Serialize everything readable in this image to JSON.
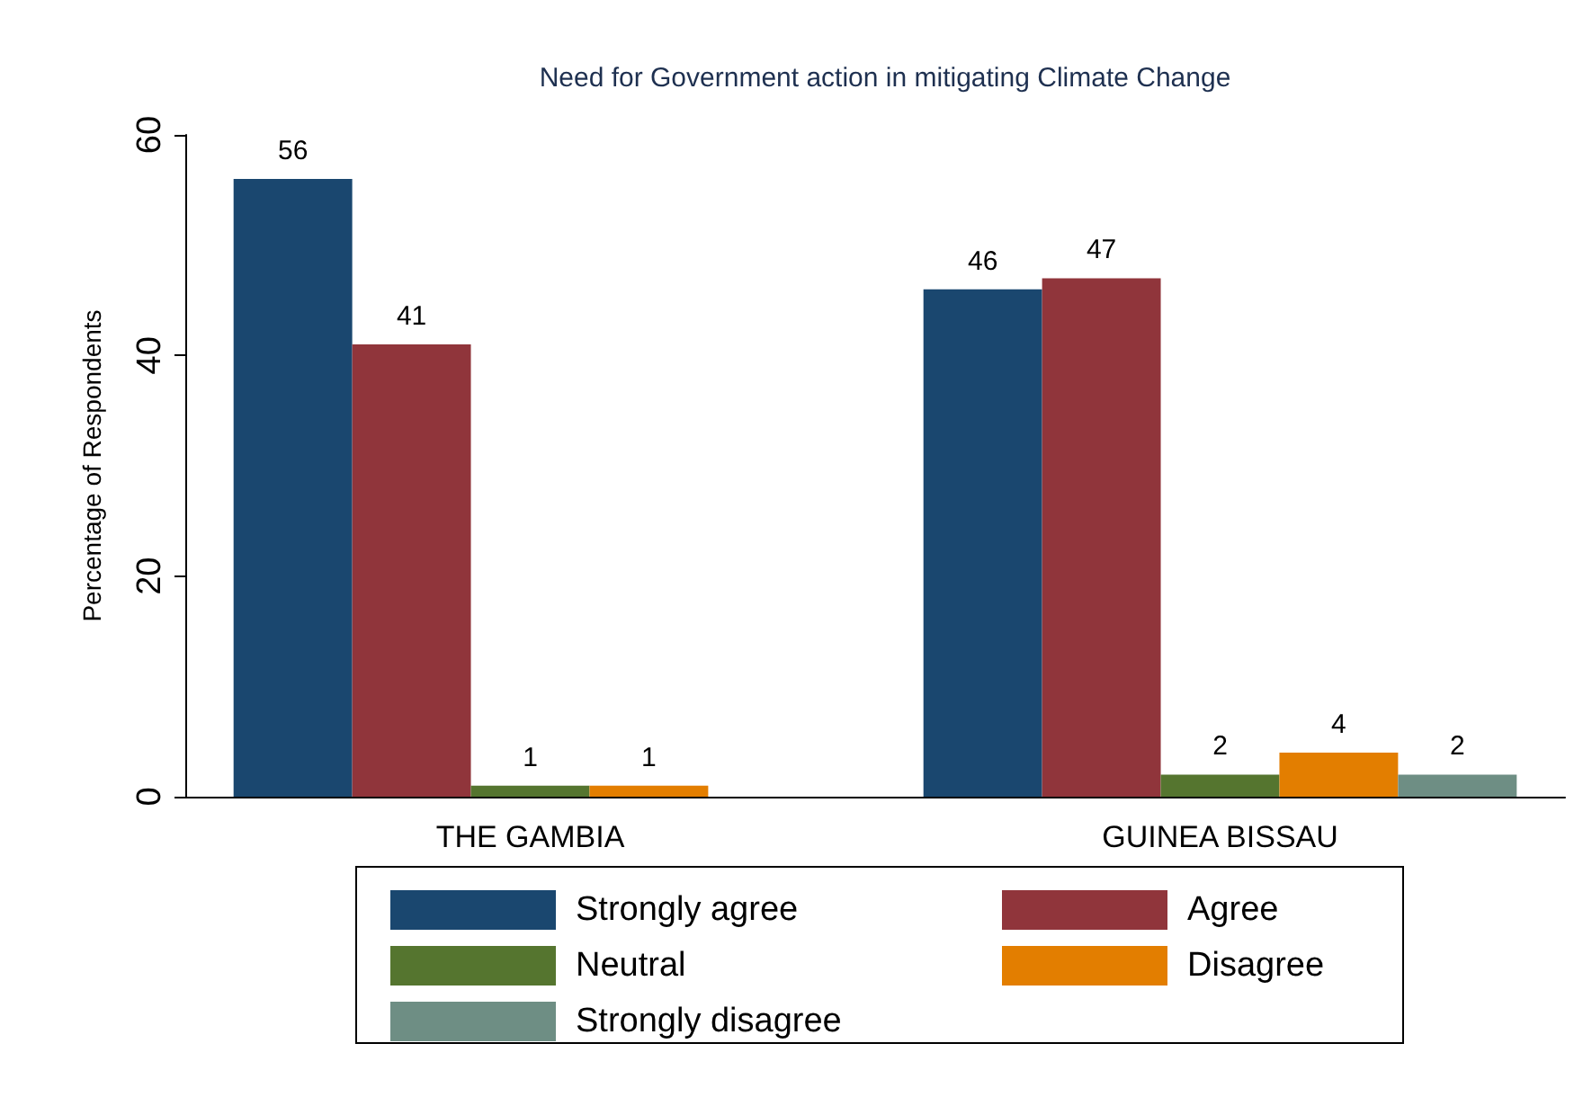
{
  "chart_data": {
    "type": "bar",
    "title": "Need for Government action in mitigating Climate Change",
    "ylabel": "Percentage of Respondents",
    "categories": [
      "THE GAMBIA",
      "GUINEA BISSAU"
    ],
    "series": [
      {
        "name": "Strongly agree",
        "color": "#1a476f",
        "values": [
          56,
          46
        ]
      },
      {
        "name": "Agree",
        "color": "#90353b",
        "values": [
          41,
          47
        ]
      },
      {
        "name": "Neutral",
        "color": "#55752f",
        "values": [
          1,
          2
        ]
      },
      {
        "name": "Disagree",
        "color": "#e37e00",
        "values": [
          1,
          4
        ]
      },
      {
        "name": "Strongly disagree",
        "color": "#6e8e84",
        "values": [
          null,
          2
        ]
      }
    ],
    "ylim": [
      0,
      60
    ],
    "yticks": [
      0,
      20,
      40,
      60
    ],
    "data_labels": true,
    "grid": false,
    "legend": "bottom"
  }
}
